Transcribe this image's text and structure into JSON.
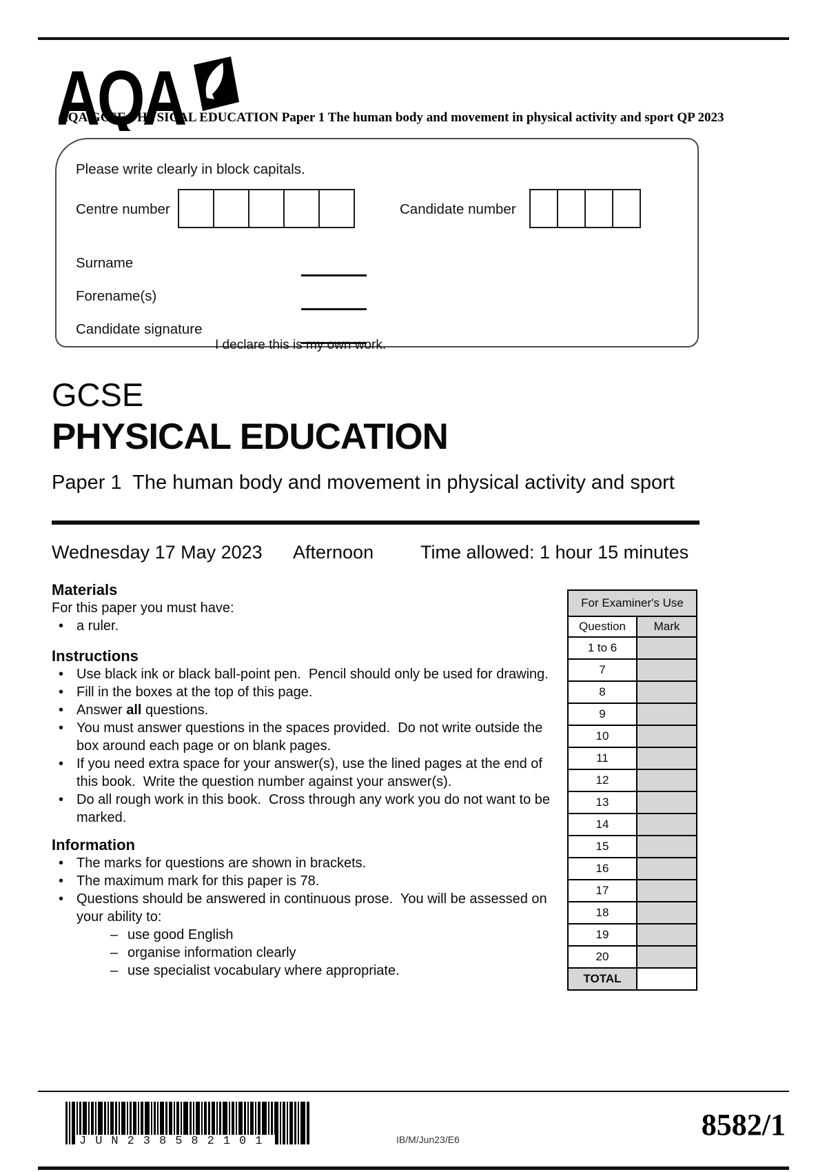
{
  "colors": {
    "ink": "#111111",
    "table_shade": "#d6d6d6"
  },
  "header": {
    "logo_text": "AQA",
    "course_line": "AQA GCSE PHYSICAL EDUCATION Paper 1 The human body and movement in physical activity and sport QP 2023"
  },
  "candidate_box": {
    "instruction": "Please write clearly in block capitals.",
    "centre_number_label": "Centre number",
    "centre_number_cells": 5,
    "candidate_number_label": "Candidate number",
    "candidate_number_cells": 4,
    "surname_label": "Surname",
    "forename_label": "Forename(s)",
    "signature_label": "Candidate signature",
    "declaration": "I declare this is my own work."
  },
  "title": {
    "qualification": "GCSE",
    "subject": "PHYSICAL EDUCATION",
    "paper": "Paper 1  The human body and movement in physical activity and sport"
  },
  "session": {
    "date": "Wednesday 17 May 2023",
    "session": "Afternoon",
    "time_allowed": "Time allowed: 1 hour 15 minutes"
  },
  "materials": {
    "heading": "Materials",
    "intro": "For this paper you must have:",
    "items": [
      "a ruler."
    ]
  },
  "instructions": {
    "heading": "Instructions",
    "items": [
      [
        {
          "t": "Use black ink or black ball-point pen.  Pencil should only be used for drawing."
        }
      ],
      [
        {
          "t": "Fill in the boxes at the top of this page."
        }
      ],
      [
        {
          "t": "Answer "
        },
        {
          "t": "all",
          "b": true
        },
        {
          "t": " questions."
        }
      ],
      [
        {
          "t": "You must answer questions in the spaces provided.  Do not write outside the box around each page or on blank pages."
        }
      ],
      [
        {
          "t": "If you need extra space for your answer(s), use the lined pages at the end of this book.  Write the question number against your answer(s)."
        }
      ],
      [
        {
          "t": "Do all rough work in this book.  Cross through any work you do not want to be marked."
        }
      ]
    ]
  },
  "information": {
    "heading": "Information",
    "items": [
      {
        "text": "The marks for questions are shown in brackets."
      },
      {
        "text": "The maximum mark for this paper is 78."
      },
      {
        "text": "Questions should be answered in continuous prose.  You will be assessed on your ability to:",
        "subitems": [
          "use good English",
          "organise information clearly",
          "use specialist vocabulary where appropriate."
        ]
      }
    ]
  },
  "examiner_table": {
    "title": "For Examiner's Use",
    "col_question": "Question",
    "col_mark": "Mark",
    "rows": [
      "1 to 6",
      "7",
      "8",
      "9",
      "10",
      "11",
      "12",
      "13",
      "14",
      "15",
      "16",
      "17",
      "18",
      "19",
      "20"
    ],
    "total_label": "TOTAL"
  },
  "footer": {
    "barcode_text": "JUN238582101",
    "ref": "IB/M/Jun23/E6",
    "paper_code": "8582/1"
  }
}
